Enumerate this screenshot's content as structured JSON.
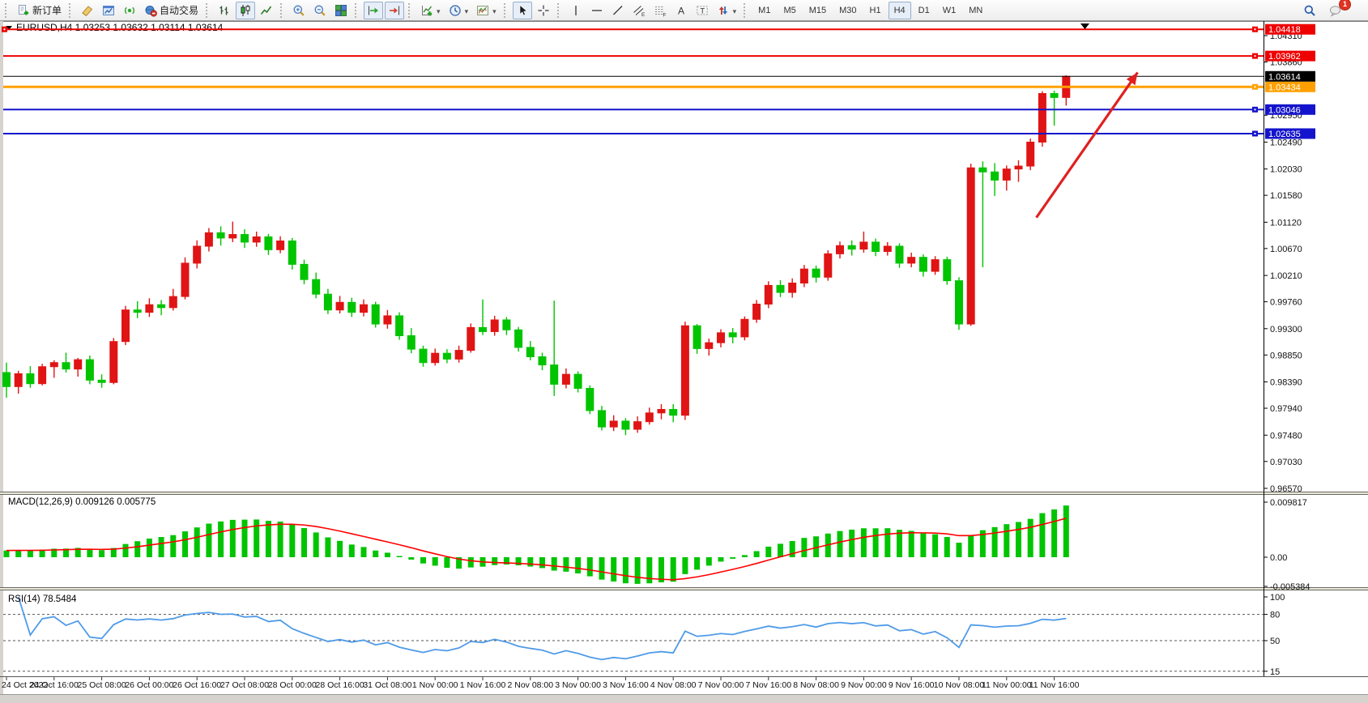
{
  "toolbar": {
    "groups": [
      {
        "buttons": [
          {
            "name": "new-order",
            "icon": "doc-new",
            "label": "新订单"
          }
        ]
      },
      {
        "buttons": [
          {
            "name": "eraser",
            "icon": "eraser"
          },
          {
            "name": "chart-windows",
            "icon": "charts-window"
          },
          {
            "name": "signals",
            "icon": "signal"
          },
          {
            "name": "auto-trading",
            "icon": "autotrade",
            "label": "自动交易"
          }
        ]
      },
      {
        "buttons": [
          {
            "name": "bar-chart-mode",
            "icon": "ohlc-bars"
          },
          {
            "name": "candlestick-mode",
            "icon": "candles",
            "active": true
          },
          {
            "name": "line-chart-mode",
            "icon": "line-chart"
          }
        ]
      },
      {
        "buttons": [
          {
            "name": "zoom-in",
            "icon": "zoom-in"
          },
          {
            "name": "zoom-out",
            "icon": "zoom-out"
          },
          {
            "name": "tile-windows",
            "icon": "tile"
          }
        ]
      },
      {
        "buttons": [
          {
            "name": "auto-scroll",
            "icon": "autoscroll",
            "active": true
          },
          {
            "name": "chart-shift",
            "icon": "chartshift",
            "active": true
          }
        ]
      },
      {
        "buttons": [
          {
            "name": "new-chart",
            "icon": "add-indicator",
            "dropdown": true
          },
          {
            "name": "periods",
            "icon": "clock",
            "dropdown": true
          },
          {
            "name": "templates",
            "icon": "template",
            "dropdown": true
          }
        ]
      },
      {
        "buttons": [
          {
            "name": "cursor",
            "icon": "cursor",
            "active": true
          },
          {
            "name": "crosshair",
            "icon": "crosshair"
          }
        ]
      },
      {
        "buttons": [
          {
            "name": "vertical-line",
            "icon": "vline"
          },
          {
            "name": "horizontal-line",
            "icon": "hline"
          },
          {
            "name": "trend-line",
            "icon": "trendline"
          },
          {
            "name": "equidistant-channel",
            "icon": "channel"
          },
          {
            "name": "fibonacci-retracement",
            "icon": "fibo"
          },
          {
            "name": "text",
            "icon": "text-a"
          },
          {
            "name": "text-label",
            "icon": "text-label"
          },
          {
            "name": "arrows",
            "icon": "arrows",
            "dropdown": true
          }
        ]
      }
    ],
    "timeframes": [
      "M1",
      "M5",
      "M15",
      "M30",
      "H1",
      "H4",
      "D1",
      "W1",
      "MN"
    ],
    "active_timeframe": "H4",
    "right_buttons": [
      {
        "name": "search",
        "icon": "search"
      },
      {
        "name": "chat",
        "icon": "chat",
        "badge": "1"
      }
    ]
  },
  "chart": {
    "title": "EURUSD,H4 1.03253 1.03632 1.03114 1.03614"
  },
  "chart_data": {
    "type": "candlestick",
    "symbol": "EURUSD",
    "timeframe": "H4",
    "last_ohlc": {
      "open": 1.03253,
      "high": 1.03632,
      "low": 1.03114,
      "close": 1.03614
    },
    "colors": {
      "bull": "#E01414",
      "bear": "#00C400",
      "axis_text": "#111111"
    },
    "price_axis_ticks": [
      "1.04310",
      "1.03860",
      "1.02950",
      "1.02490",
      "1.02030",
      "1.01580",
      "1.01120",
      "1.00670",
      "1.00210",
      "0.99760",
      "0.99300",
      "0.98850",
      "0.98390",
      "0.97940",
      "0.97480",
      "0.97030",
      "0.96570"
    ],
    "x_labels": [
      "24 Oct 2022",
      "24 Oct 16:00",
      "25 Oct 08:00",
      "26 Oct 00:00",
      "26 Oct 16:00",
      "27 Oct 08:00",
      "28 Oct 00:00",
      "28 Oct 16:00",
      "31 Oct 08:00",
      "1 Nov 00:00",
      "1 Nov 16:00",
      "2 Nov 08:00",
      "3 Nov 00:00",
      "3 Nov 16:00",
      "4 Nov 08:00",
      "7 Nov 00:00",
      "7 Nov 16:00",
      "8 Nov 08:00",
      "9 Nov 00:00",
      "9 Nov 16:00",
      "10 Nov 08:00",
      "11 Nov 00:00",
      "11 Nov 16:00"
    ],
    "horizontal_lines": [
      {
        "price": 1.04418,
        "label": "1.04418",
        "color": "#EE0000",
        "width": 2
      },
      {
        "price": 1.03962,
        "label": "1.03962",
        "color": "#EE0000",
        "width": 2
      },
      {
        "price": 1.03434,
        "label": "1.03434",
        "color": "#FFA000",
        "width": 3
      },
      {
        "price": 1.03046,
        "label": "1.03046",
        "color": "#1414CC",
        "width": 2
      },
      {
        "price": 1.02635,
        "label": "1.02635",
        "color": "#1414CC",
        "width": 2
      }
    ],
    "current_price": {
      "label": "1.03614",
      "value": 1.03614,
      "color": "#000000"
    },
    "annotations": {
      "trend_arrow": {
        "from_bar": 86.5,
        "from_price": 1.012,
        "to_bar": 95,
        "to_price": 1.0368,
        "color": "#E02020"
      }
    },
    "candles": [
      [
        0.9855,
        0.9872,
        0.9812,
        0.9831
      ],
      [
        0.9831,
        0.9858,
        0.9819,
        0.9853
      ],
      [
        0.9853,
        0.9866,
        0.9829,
        0.9836
      ],
      [
        0.9836,
        0.987,
        0.9833,
        0.9865
      ],
      [
        0.9865,
        0.9876,
        0.9846,
        0.9872
      ],
      [
        0.9872,
        0.9889,
        0.9855,
        0.9861
      ],
      [
        0.9861,
        0.988,
        0.9848,
        0.9877
      ],
      [
        0.9877,
        0.9884,
        0.9835,
        0.9842
      ],
      [
        0.9842,
        0.9852,
        0.9829,
        0.9838
      ],
      [
        0.9838,
        0.9914,
        0.9835,
        0.9908
      ],
      [
        0.9908,
        0.9969,
        0.9902,
        0.9962
      ],
      [
        0.9962,
        0.9977,
        0.9948,
        0.9958
      ],
      [
        0.9958,
        0.9982,
        0.995,
        0.9971
      ],
      [
        0.9971,
        0.9979,
        0.9953,
        0.9966
      ],
      [
        0.9966,
        0.9998,
        0.9961,
        0.9985
      ],
      [
        0.9985,
        1.0052,
        0.998,
        1.0042
      ],
      [
        1.0042,
        1.0081,
        1.0033,
        1.0071
      ],
      [
        1.0071,
        1.0102,
        1.0062,
        1.0094
      ],
      [
        1.0094,
        1.0105,
        1.0072,
        1.0085
      ],
      [
        1.0085,
        1.0113,
        1.0078,
        1.0091
      ],
      [
        1.0091,
        1.01,
        1.0068,
        1.0078
      ],
      [
        1.0078,
        1.0096,
        1.007,
        1.0087
      ],
      [
        1.0087,
        1.0092,
        1.0056,
        1.0065
      ],
      [
        1.0065,
        1.0088,
        1.0059,
        1.008
      ],
      [
        1.008,
        1.0085,
        1.0031,
        1.004
      ],
      [
        1.004,
        1.0048,
        1.0006,
        1.0014
      ],
      [
        1.0014,
        1.0026,
        0.9982,
        0.9989
      ],
      [
        0.9989,
        0.9998,
        0.9955,
        0.9962
      ],
      [
        0.9962,
        0.9986,
        0.9956,
        0.9975
      ],
      [
        0.9975,
        0.9983,
        0.995,
        0.9958
      ],
      [
        0.9958,
        0.998,
        0.9951,
        0.9971
      ],
      [
        0.9971,
        0.9976,
        0.9932,
        0.9938
      ],
      [
        0.9938,
        0.9962,
        0.993,
        0.9952
      ],
      [
        0.9952,
        0.9958,
        0.9911,
        0.9918
      ],
      [
        0.9918,
        0.9931,
        0.9888,
        0.9895
      ],
      [
        0.9895,
        0.9901,
        0.9865,
        0.9872
      ],
      [
        0.9872,
        0.9896,
        0.9867,
        0.9888
      ],
      [
        0.9888,
        0.9895,
        0.9871,
        0.9878
      ],
      [
        0.9878,
        0.9901,
        0.9872,
        0.9893
      ],
      [
        0.9893,
        0.9939,
        0.9889,
        0.9932
      ],
      [
        0.9932,
        0.998,
        0.9919,
        0.9925
      ],
      [
        0.9925,
        0.9952,
        0.9918,
        0.9945
      ],
      [
        0.9945,
        0.995,
        0.9919,
        0.9928
      ],
      [
        0.9928,
        0.9933,
        0.9891,
        0.9898
      ],
      [
        0.9898,
        0.9909,
        0.9876,
        0.9882
      ],
      [
        0.9882,
        0.9889,
        0.9859,
        0.9868
      ],
      [
        0.9868,
        0.9978,
        0.9815,
        0.9835
      ],
      [
        0.9835,
        0.9862,
        0.9828,
        0.9852
      ],
      [
        0.9852,
        0.9857,
        0.9821,
        0.9828
      ],
      [
        0.9828,
        0.9833,
        0.9784,
        0.979
      ],
      [
        0.979,
        0.9798,
        0.9756,
        0.9762
      ],
      [
        0.9762,
        0.9782,
        0.9755,
        0.9772
      ],
      [
        0.9772,
        0.9777,
        0.9748,
        0.9758
      ],
      [
        0.9758,
        0.978,
        0.9752,
        0.9771
      ],
      [
        0.9771,
        0.9795,
        0.9766,
        0.9786
      ],
      [
        0.9786,
        0.9801,
        0.9775,
        0.9792
      ],
      [
        0.9792,
        0.9801,
        0.977,
        0.9782
      ],
      [
        0.9782,
        0.9942,
        0.9774,
        0.9935
      ],
      [
        0.9935,
        0.9938,
        0.9887,
        0.9896
      ],
      [
        0.9896,
        0.9913,
        0.9884,
        0.9906
      ],
      [
        0.9906,
        0.9929,
        0.9898,
        0.9923
      ],
      [
        0.9923,
        0.9931,
        0.9905,
        0.9916
      ],
      [
        0.9916,
        0.9951,
        0.991,
        0.9946
      ],
      [
        0.9946,
        0.9979,
        0.994,
        0.9972
      ],
      [
        0.9972,
        1.0011,
        0.9965,
        1.0004
      ],
      [
        1.0004,
        1.0013,
        0.9984,
        0.9992
      ],
      [
        0.9992,
        1.0016,
        0.9983,
        1.0008
      ],
      [
        1.0008,
        1.0039,
        1.0001,
        1.0032
      ],
      [
        1.0032,
        1.0038,
        1.0009,
        1.0018
      ],
      [
        1.0018,
        1.0064,
        1.0012,
        1.0058
      ],
      [
        1.0058,
        1.0079,
        1.005,
        1.0072
      ],
      [
        1.0072,
        1.0081,
        1.0055,
        1.0066
      ],
      [
        1.0066,
        1.0096,
        1.006,
        1.0078
      ],
      [
        1.0078,
        1.0084,
        1.0054,
        1.0062
      ],
      [
        1.0062,
        1.0078,
        1.0055,
        1.0071
      ],
      [
        1.0071,
        1.0076,
        1.0034,
        1.0042
      ],
      [
        1.0042,
        1.006,
        1.0035,
        1.0052
      ],
      [
        1.0052,
        1.0057,
        1.0019,
        1.0028
      ],
      [
        1.0028,
        1.0054,
        1.0022,
        1.0048
      ],
      [
        1.0048,
        1.0053,
        1.0005,
        1.0012
      ],
      [
        1.0012,
        1.0018,
        0.9928,
        0.9938
      ],
      [
        0.9938,
        1.0212,
        0.9935,
        1.0205
      ],
      [
        1.0205,
        1.0216,
        1.0035,
        1.0198
      ],
      [
        1.0198,
        1.0213,
        1.0157,
        1.0184
      ],
      [
        1.0184,
        1.0209,
        1.0166,
        1.0203
      ],
      [
        1.0203,
        1.0218,
        1.0181,
        1.0208
      ],
      [
        1.0208,
        1.0255,
        1.0201,
        1.0249
      ],
      [
        1.0249,
        1.0336,
        1.0241,
        1.0332
      ],
      [
        1.0332,
        1.0337,
        1.0277,
        1.03253
      ],
      [
        1.03253,
        1.03632,
        1.03114,
        1.03614
      ]
    ],
    "indicators": {
      "macd": {
        "text": "MACD(12,26,9) 0.009126 0.005775",
        "params": [
          12,
          26,
          9
        ],
        "main": 0.009126,
        "signal": 0.005775,
        "axis_ticks": [
          "0.009817",
          "0.00",
          "-0.005384"
        ],
        "histogram_color": "#00C400",
        "signal_color": "#FF0000"
      },
      "rsi": {
        "text": "RSI(14) 78.5484",
        "period": 14,
        "value": 78.5484,
        "axis_ticks": [
          "100",
          "80",
          "50",
          "15"
        ],
        "levels": [
          80,
          50,
          15
        ],
        "line_color": "#4F9BE8"
      }
    }
  }
}
